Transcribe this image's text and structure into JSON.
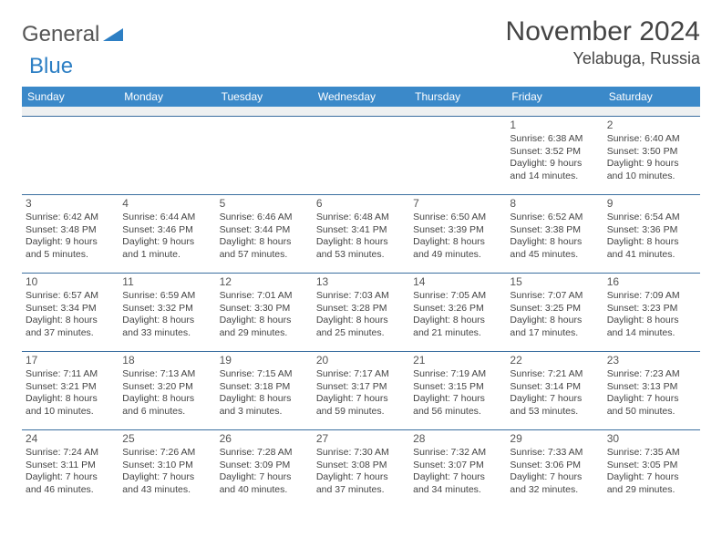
{
  "logo": {
    "general": "General",
    "blue": "Blue"
  },
  "title": "November 2024",
  "location": "Yelabuga, Russia",
  "colors": {
    "header_bg": "#3b89c9",
    "header_text": "#ffffff",
    "cell_border": "#3b6fa0",
    "gap_bg": "#eef0f1",
    "text": "#444444",
    "logo_gray": "#555555",
    "logo_blue": "#2d7fc4"
  },
  "weekdays": [
    "Sunday",
    "Monday",
    "Tuesday",
    "Wednesday",
    "Thursday",
    "Friday",
    "Saturday"
  ],
  "weeks": [
    [
      {},
      {},
      {},
      {},
      {},
      {
        "day": "1",
        "sunrise": "Sunrise: 6:38 AM",
        "sunset": "Sunset: 3:52 PM",
        "daylight": "Daylight: 9 hours and 14 minutes."
      },
      {
        "day": "2",
        "sunrise": "Sunrise: 6:40 AM",
        "sunset": "Sunset: 3:50 PM",
        "daylight": "Daylight: 9 hours and 10 minutes."
      }
    ],
    [
      {
        "day": "3",
        "sunrise": "Sunrise: 6:42 AM",
        "sunset": "Sunset: 3:48 PM",
        "daylight": "Daylight: 9 hours and 5 minutes."
      },
      {
        "day": "4",
        "sunrise": "Sunrise: 6:44 AM",
        "sunset": "Sunset: 3:46 PM",
        "daylight": "Daylight: 9 hours and 1 minute."
      },
      {
        "day": "5",
        "sunrise": "Sunrise: 6:46 AM",
        "sunset": "Sunset: 3:44 PM",
        "daylight": "Daylight: 8 hours and 57 minutes."
      },
      {
        "day": "6",
        "sunrise": "Sunrise: 6:48 AM",
        "sunset": "Sunset: 3:41 PM",
        "daylight": "Daylight: 8 hours and 53 minutes."
      },
      {
        "day": "7",
        "sunrise": "Sunrise: 6:50 AM",
        "sunset": "Sunset: 3:39 PM",
        "daylight": "Daylight: 8 hours and 49 minutes."
      },
      {
        "day": "8",
        "sunrise": "Sunrise: 6:52 AM",
        "sunset": "Sunset: 3:38 PM",
        "daylight": "Daylight: 8 hours and 45 minutes."
      },
      {
        "day": "9",
        "sunrise": "Sunrise: 6:54 AM",
        "sunset": "Sunset: 3:36 PM",
        "daylight": "Daylight: 8 hours and 41 minutes."
      }
    ],
    [
      {
        "day": "10",
        "sunrise": "Sunrise: 6:57 AM",
        "sunset": "Sunset: 3:34 PM",
        "daylight": "Daylight: 8 hours and 37 minutes."
      },
      {
        "day": "11",
        "sunrise": "Sunrise: 6:59 AM",
        "sunset": "Sunset: 3:32 PM",
        "daylight": "Daylight: 8 hours and 33 minutes."
      },
      {
        "day": "12",
        "sunrise": "Sunrise: 7:01 AM",
        "sunset": "Sunset: 3:30 PM",
        "daylight": "Daylight: 8 hours and 29 minutes."
      },
      {
        "day": "13",
        "sunrise": "Sunrise: 7:03 AM",
        "sunset": "Sunset: 3:28 PM",
        "daylight": "Daylight: 8 hours and 25 minutes."
      },
      {
        "day": "14",
        "sunrise": "Sunrise: 7:05 AM",
        "sunset": "Sunset: 3:26 PM",
        "daylight": "Daylight: 8 hours and 21 minutes."
      },
      {
        "day": "15",
        "sunrise": "Sunrise: 7:07 AM",
        "sunset": "Sunset: 3:25 PM",
        "daylight": "Daylight: 8 hours and 17 minutes."
      },
      {
        "day": "16",
        "sunrise": "Sunrise: 7:09 AM",
        "sunset": "Sunset: 3:23 PM",
        "daylight": "Daylight: 8 hours and 14 minutes."
      }
    ],
    [
      {
        "day": "17",
        "sunrise": "Sunrise: 7:11 AM",
        "sunset": "Sunset: 3:21 PM",
        "daylight": "Daylight: 8 hours and 10 minutes."
      },
      {
        "day": "18",
        "sunrise": "Sunrise: 7:13 AM",
        "sunset": "Sunset: 3:20 PM",
        "daylight": "Daylight: 8 hours and 6 minutes."
      },
      {
        "day": "19",
        "sunrise": "Sunrise: 7:15 AM",
        "sunset": "Sunset: 3:18 PM",
        "daylight": "Daylight: 8 hours and 3 minutes."
      },
      {
        "day": "20",
        "sunrise": "Sunrise: 7:17 AM",
        "sunset": "Sunset: 3:17 PM",
        "daylight": "Daylight: 7 hours and 59 minutes."
      },
      {
        "day": "21",
        "sunrise": "Sunrise: 7:19 AM",
        "sunset": "Sunset: 3:15 PM",
        "daylight": "Daylight: 7 hours and 56 minutes."
      },
      {
        "day": "22",
        "sunrise": "Sunrise: 7:21 AM",
        "sunset": "Sunset: 3:14 PM",
        "daylight": "Daylight: 7 hours and 53 minutes."
      },
      {
        "day": "23",
        "sunrise": "Sunrise: 7:23 AM",
        "sunset": "Sunset: 3:13 PM",
        "daylight": "Daylight: 7 hours and 50 minutes."
      }
    ],
    [
      {
        "day": "24",
        "sunrise": "Sunrise: 7:24 AM",
        "sunset": "Sunset: 3:11 PM",
        "daylight": "Daylight: 7 hours and 46 minutes."
      },
      {
        "day": "25",
        "sunrise": "Sunrise: 7:26 AM",
        "sunset": "Sunset: 3:10 PM",
        "daylight": "Daylight: 7 hours and 43 minutes."
      },
      {
        "day": "26",
        "sunrise": "Sunrise: 7:28 AM",
        "sunset": "Sunset: 3:09 PM",
        "daylight": "Daylight: 7 hours and 40 minutes."
      },
      {
        "day": "27",
        "sunrise": "Sunrise: 7:30 AM",
        "sunset": "Sunset: 3:08 PM",
        "daylight": "Daylight: 7 hours and 37 minutes."
      },
      {
        "day": "28",
        "sunrise": "Sunrise: 7:32 AM",
        "sunset": "Sunset: 3:07 PM",
        "daylight": "Daylight: 7 hours and 34 minutes."
      },
      {
        "day": "29",
        "sunrise": "Sunrise: 7:33 AM",
        "sunset": "Sunset: 3:06 PM",
        "daylight": "Daylight: 7 hours and 32 minutes."
      },
      {
        "day": "30",
        "sunrise": "Sunrise: 7:35 AM",
        "sunset": "Sunset: 3:05 PM",
        "daylight": "Daylight: 7 hours and 29 minutes."
      }
    ]
  ]
}
